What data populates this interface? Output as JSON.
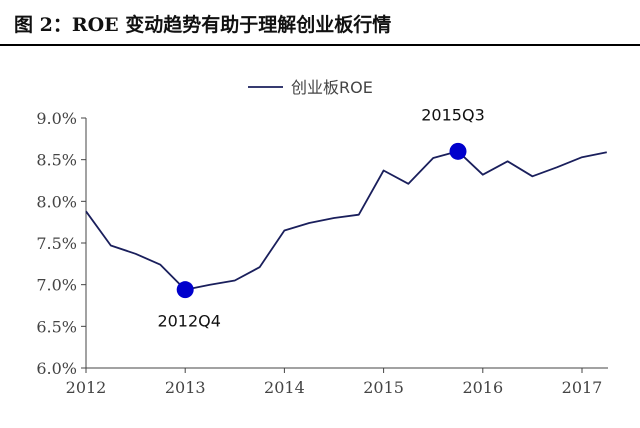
{
  "figure": {
    "title": "图 2：ROE 变动趋势有助于理解创业板行情"
  },
  "chart_data": {
    "type": "line",
    "title": "",
    "xlabel": "",
    "ylabel": "",
    "x_ticks": [
      "2012",
      "2013",
      "2014",
      "2015",
      "2016",
      "2017"
    ],
    "y_ticks": [
      "9.0%",
      "8.5%",
      "8.0%",
      "7.5%",
      "7.0%",
      "6.5%",
      "6.0%"
    ],
    "xlim": [
      2012,
      2017.25
    ],
    "ylim": [
      6.0,
      9.0
    ],
    "grid": false,
    "legend_position": "top-center",
    "colors": {
      "line": "#1a1f5c",
      "marker": "#0000cc"
    },
    "series": [
      {
        "name": "创业板ROE",
        "x": [
          2012.0,
          2012.25,
          2012.5,
          2012.75,
          2013.0,
          2013.25,
          2013.5,
          2013.75,
          2014.0,
          2014.25,
          2014.5,
          2014.75,
          2015.0,
          2015.25,
          2015.5,
          2015.75,
          2016.0,
          2016.25,
          2016.5,
          2016.75,
          2017.0,
          2017.25
        ],
        "y": [
          7.88,
          7.47,
          7.37,
          7.24,
          6.94,
          7.0,
          7.05,
          7.21,
          7.65,
          7.74,
          7.8,
          7.84,
          8.37,
          8.21,
          8.52,
          8.6,
          8.32,
          8.48,
          8.3,
          8.41,
          8.53,
          8.59
        ]
      }
    ],
    "annotations": [
      {
        "label": "2012Q4",
        "x": 2013.0,
        "y": 6.94
      },
      {
        "label": "2015Q3",
        "x": 2015.75,
        "y": 8.6
      }
    ]
  }
}
